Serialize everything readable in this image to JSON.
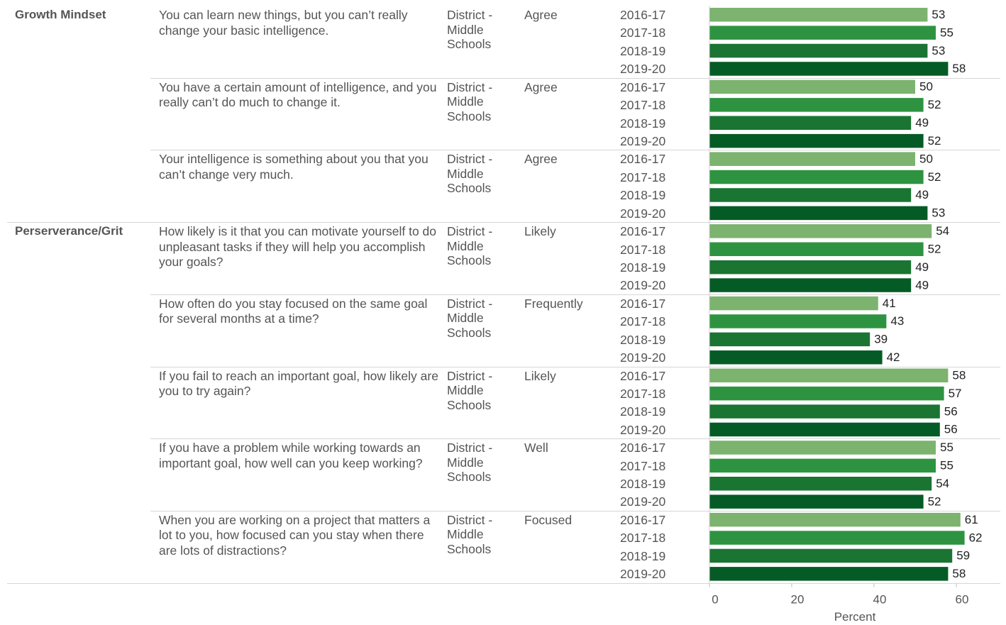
{
  "colors": {
    "2016-17": "#7cb36f",
    "2017-18": "#2e9340",
    "2018-19": "#1a7432",
    "2019-20": "#055b25"
  },
  "chart_data": {
    "type": "bar",
    "orientation": "horizontal",
    "xlabel": "Percent",
    "xlim": [
      0,
      62
    ],
    "xticks": [
      0,
      20,
      40,
      60
    ],
    "years": [
      "2016-17",
      "2017-18",
      "2018-19",
      "2019-20"
    ],
    "rows": [
      {
        "category": "Growth Mindset",
        "question": "You can learn new things, but you can’t really change your basic intelligence.",
        "group": "District - Middle Schools",
        "response": "Agree",
        "values": [
          53,
          55,
          53,
          58
        ]
      },
      {
        "category": "",
        "question": "You have a certain amount of intelligence, and you really can’t do much to change it.",
        "group": "District - Middle Schools",
        "response": "Agree",
        "values": [
          50,
          52,
          49,
          52
        ]
      },
      {
        "category": "",
        "question": "Your intelligence is something about you that you can’t change very much.",
        "group": "District - Middle Schools",
        "response": "Agree",
        "values": [
          50,
          52,
          49,
          53
        ]
      },
      {
        "category": "Perserverance/Grit",
        "question": "How likely is it that you can motivate yourself to do unpleasant tasks if they will help you accomplish your goals?",
        "group": "District - Middle Schools",
        "response": "Likely",
        "values": [
          54,
          52,
          49,
          49
        ]
      },
      {
        "category": "",
        "question": "How often do you stay focused on the same goal for several months at a time?",
        "group": "District - Middle Schools",
        "response": "Frequently",
        "values": [
          41,
          43,
          39,
          42
        ]
      },
      {
        "category": "",
        "question": "If you fail to reach an important goal, how likely are you to try again?",
        "group": "District - Middle Schools",
        "response": "Likely",
        "values": [
          58,
          57,
          56,
          56
        ]
      },
      {
        "category": "",
        "question": "If you have a problem while working towards an important goal, how well can you keep working?",
        "group": "District - Middle Schools",
        "response": "Well",
        "values": [
          55,
          55,
          54,
          52
        ]
      },
      {
        "category": "",
        "question": "When you are working on a project that matters a lot to you, how focused can you stay when there are lots of distractions?",
        "group": "District - Middle Schools",
        "response": "Focused",
        "values": [
          61,
          62,
          59,
          58
        ]
      }
    ]
  }
}
